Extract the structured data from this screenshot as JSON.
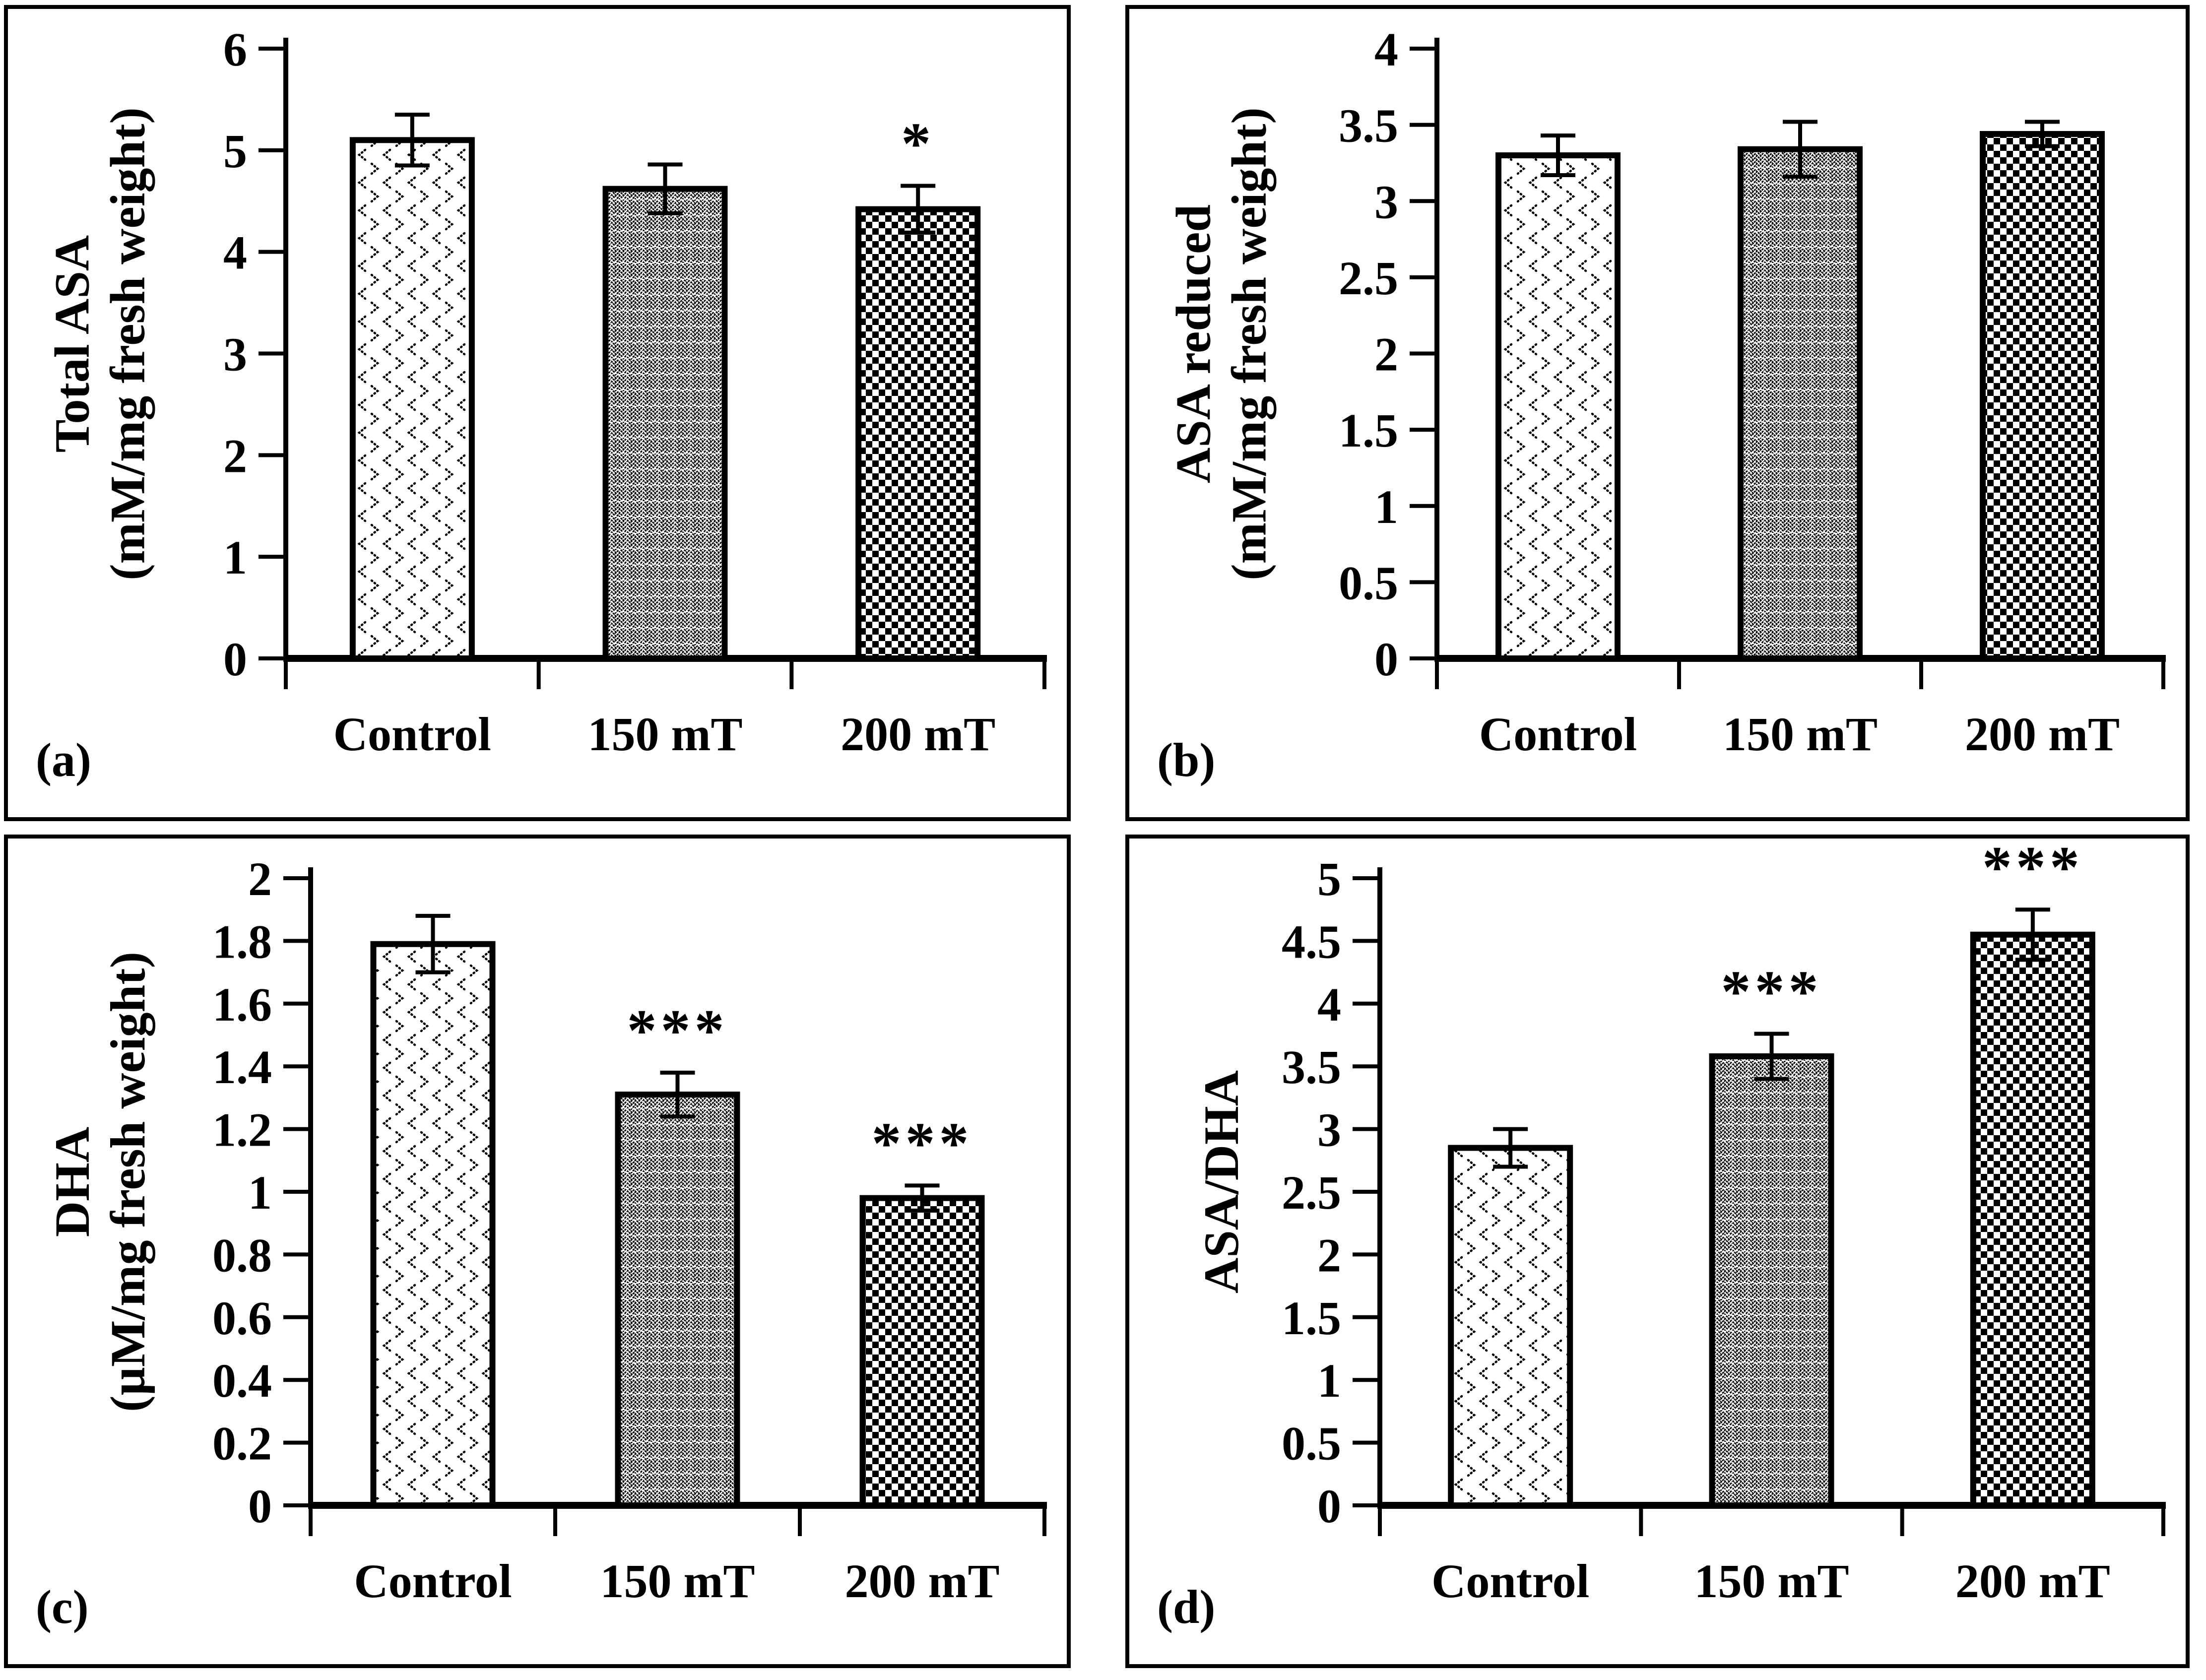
{
  "figure": {
    "background_color": "#ffffff",
    "ink_color": "#000000",
    "description": "Four-panel bar chart figure comparing Control, 150 mT and 200 mT magnetic-field treatments"
  },
  "chart_data": [
    {
      "id": "a",
      "letter": "(a)",
      "type": "bar",
      "title": "",
      "xlabel": "",
      "ylabel_line1": "Total ASA",
      "ylabel_line2": "(mM/mg fresh weight)",
      "categories": [
        "Control",
        "150 mT",
        "200 mT"
      ],
      "values": [
        5.1,
        4.62,
        4.42
      ],
      "errors": [
        0.25,
        0.24,
        0.23
      ],
      "annotations": [
        "",
        "",
        "*"
      ],
      "ylim": [
        0,
        6
      ],
      "ystep": 1,
      "grid": false,
      "legend": "none",
      "bar_patterns": [
        "dotted-chevron",
        "herringbone",
        "checkerboard"
      ]
    },
    {
      "id": "b",
      "letter": "(b)",
      "type": "bar",
      "title": "",
      "xlabel": "",
      "ylabel_line1": "ASA reduced",
      "ylabel_line2": "(mM/mg fresh weight)",
      "categories": [
        "Control",
        "150 mT",
        "200 mT"
      ],
      "values": [
        3.3,
        3.34,
        3.44
      ],
      "errors": [
        0.13,
        0.18,
        0.08
      ],
      "annotations": [
        "",
        "",
        ""
      ],
      "ylim": [
        0,
        4
      ],
      "ystep": 0.5,
      "grid": false,
      "legend": "none",
      "bar_patterns": [
        "dotted-chevron",
        "herringbone",
        "checkerboard"
      ]
    },
    {
      "id": "c",
      "letter": "(c)",
      "type": "bar",
      "title": "",
      "xlabel": "",
      "ylabel_line1": "DHA",
      "ylabel_line2": "(µM/mg fresh weight)",
      "categories": [
        "Control",
        "150 mT",
        "200 mT"
      ],
      "values": [
        1.79,
        1.31,
        0.98
      ],
      "errors": [
        0.09,
        0.07,
        0.04
      ],
      "annotations": [
        "",
        "***",
        "***"
      ],
      "ylim": [
        0,
        2
      ],
      "ystep": 0.2,
      "grid": false,
      "legend": "none",
      "bar_patterns": [
        "dotted-chevron",
        "herringbone",
        "checkerboard"
      ]
    },
    {
      "id": "d",
      "letter": "(d)",
      "type": "bar",
      "title": "",
      "xlabel": "",
      "ylabel_line1": "ASA/DHA",
      "ylabel_line2": "",
      "categories": [
        "Control",
        "150 mT",
        "200 mT"
      ],
      "values": [
        2.85,
        3.58,
        4.55
      ],
      "errors": [
        0.15,
        0.18,
        0.2
      ],
      "annotations": [
        "",
        "***",
        "***"
      ],
      "ylim": [
        0,
        5
      ],
      "ystep": 0.5,
      "grid": false,
      "legend": "none",
      "bar_patterns": [
        "dotted-chevron",
        "herringbone",
        "checkerboard"
      ]
    }
  ]
}
